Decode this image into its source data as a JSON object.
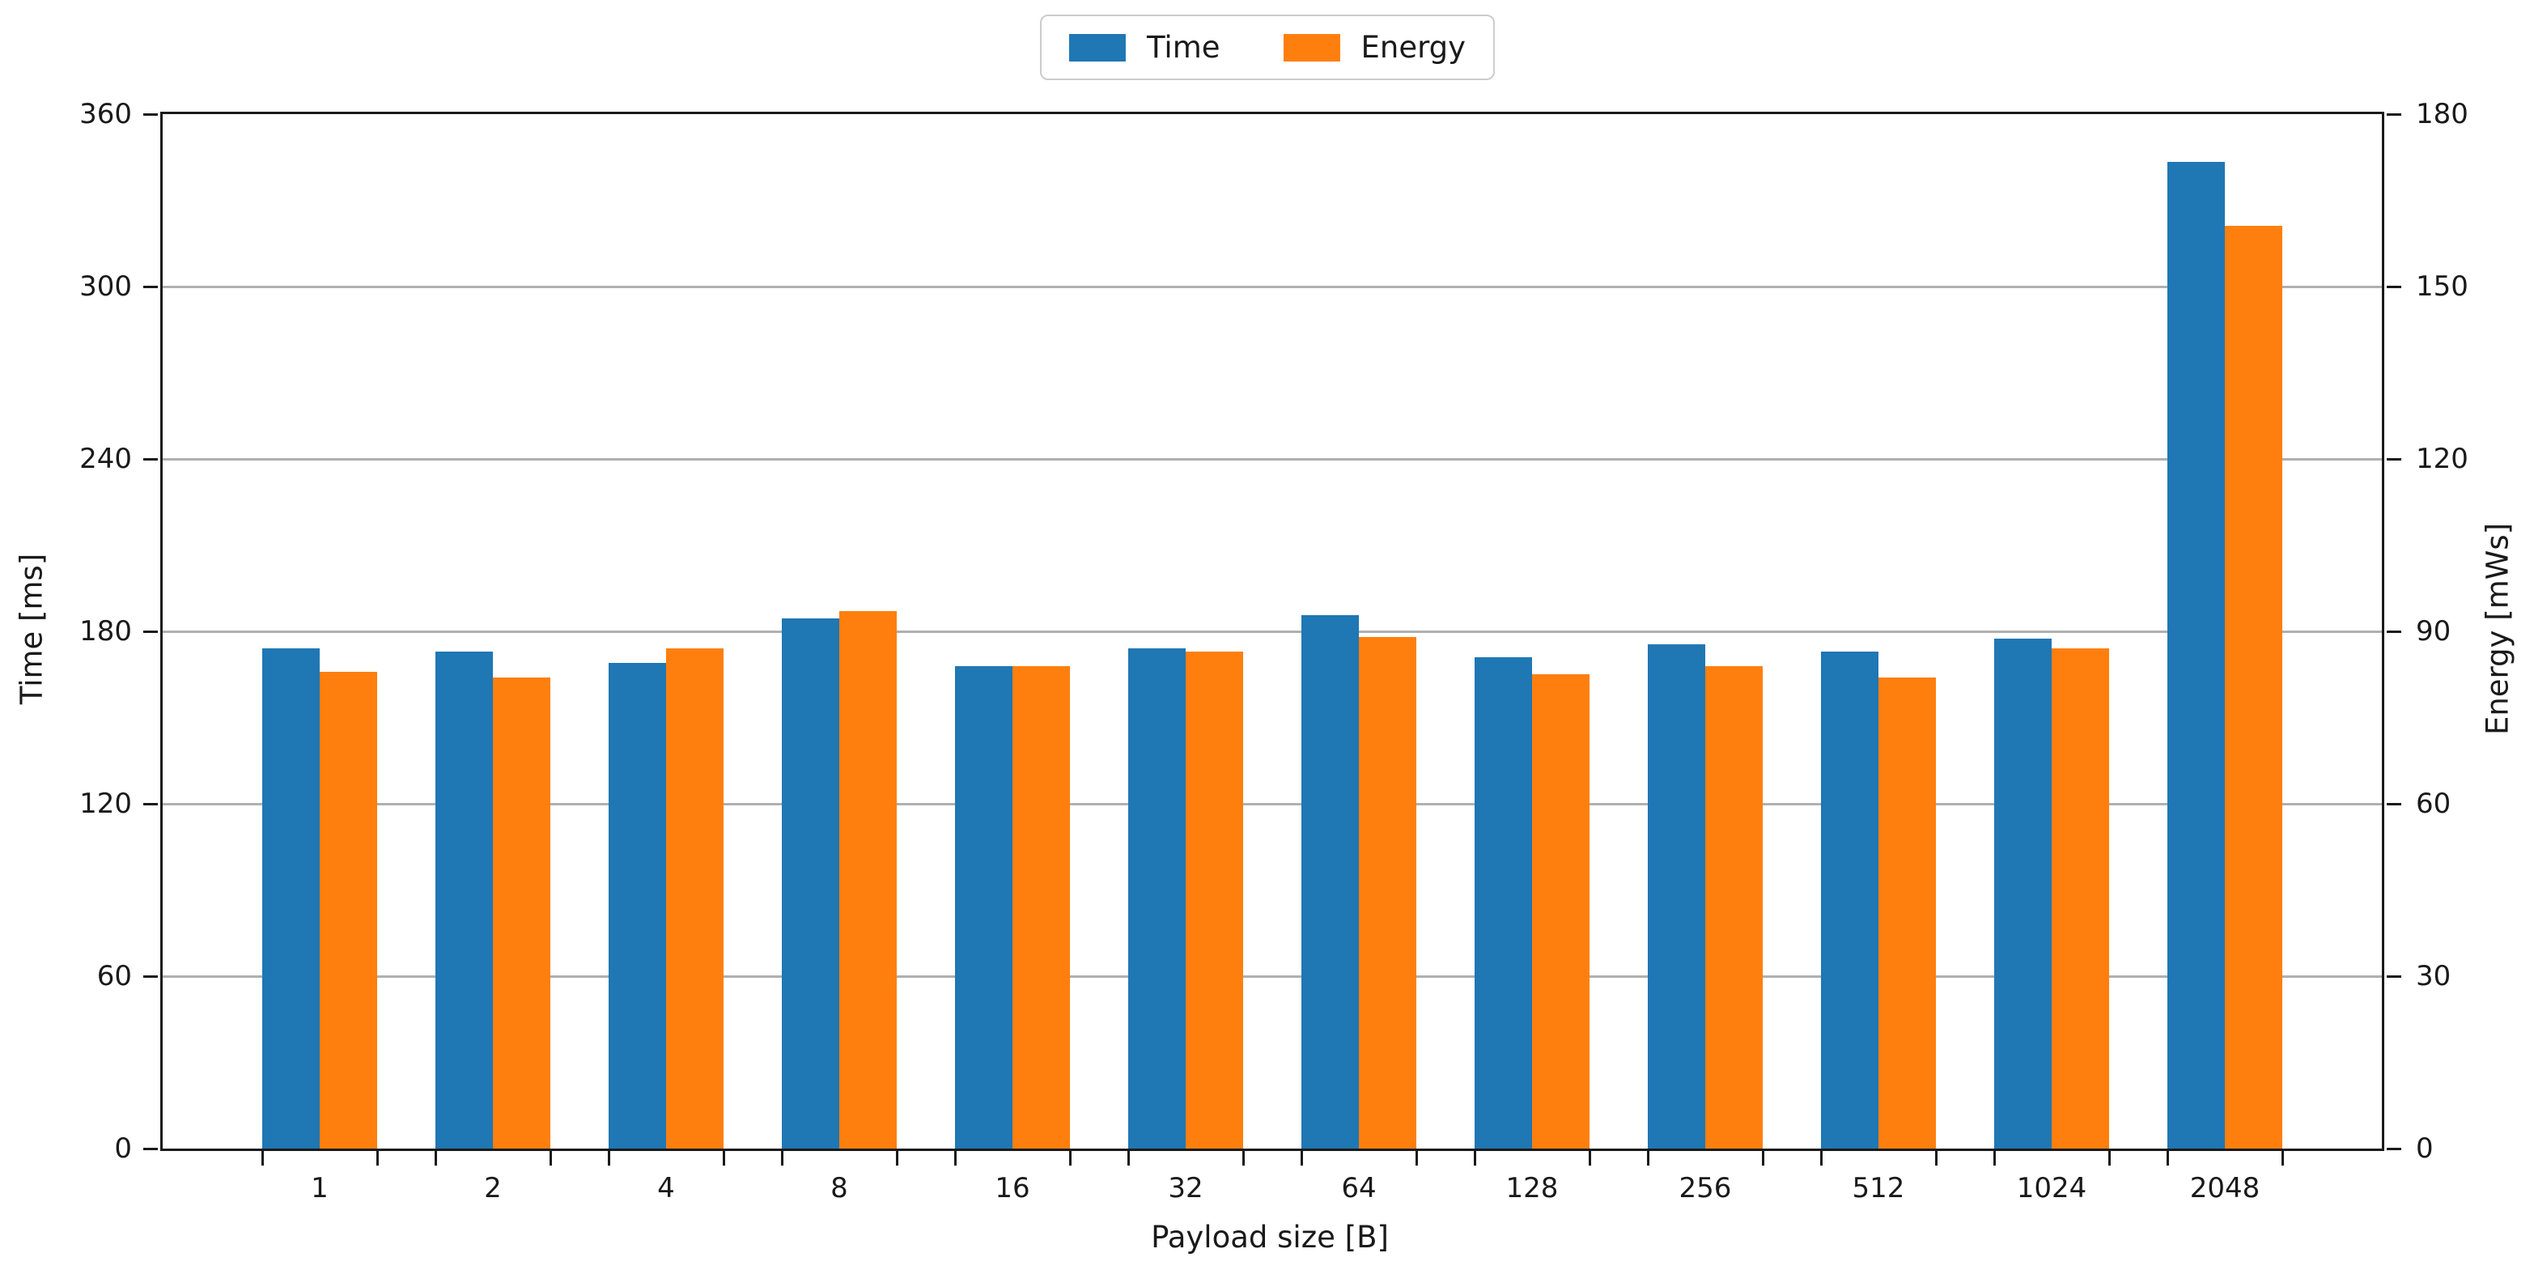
{
  "chart_data": {
    "type": "bar",
    "title": "",
    "categories": [
      "1",
      "2",
      "4",
      "8",
      "16",
      "32",
      "64",
      "128",
      "256",
      "512",
      "1024",
      "2048"
    ],
    "series": [
      {
        "name": "Time",
        "axis": "left",
        "unit": "ms",
        "color": "#1f77b4",
        "values": [
          174,
          173,
          169,
          184.5,
          168,
          174,
          185.5,
          171,
          175.5,
          173,
          177.5,
          343.5
        ]
      },
      {
        "name": "Energy",
        "axis": "right",
        "unit": "mWs",
        "color": "#ff7f0e",
        "values": [
          83,
          82,
          87,
          93.5,
          84,
          86.5,
          89,
          82.5,
          84,
          82,
          87,
          160.5
        ]
      }
    ],
    "xlabel": "Payload size [B]",
    "ylabel_left": "Time [ms]",
    "ylabel_right": "Energy [mWs]",
    "yticks_left": [
      0,
      60,
      120,
      180,
      240,
      300,
      360
    ],
    "yticks_right": [
      0,
      30,
      60,
      90,
      120,
      150,
      180
    ],
    "ylim_left": [
      0,
      360
    ],
    "ylim_right": [
      0,
      180
    ],
    "grid": "horizontal",
    "gridline_color": "#b0b0b0",
    "spine_color": "#1a1a1a",
    "legend_position": "top-center",
    "legend_labels": [
      "Time",
      "Energy"
    ]
  }
}
